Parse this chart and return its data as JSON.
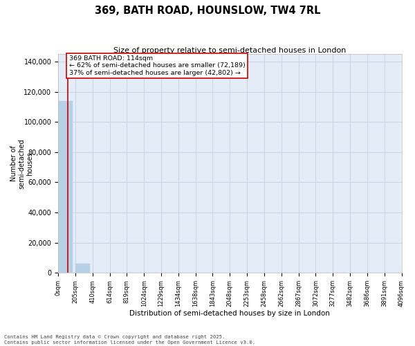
{
  "title": "369, BATH ROAD, HOUNSLOW, TW4 7RL",
  "subtitle": "Size of property relative to semi-detached houses in London",
  "xlabel": "Distribution of semi-detached houses by size in London",
  "ylabel": "Number of\nsemi-detached\nhouses",
  "property_size": 114,
  "annotation_text": "369 BATH ROAD: 114sqm\n← 62% of semi-detached houses are smaller (72,189)\n37% of semi-detached houses are larger (42,802) →",
  "bin_edges": [
    0,
    205,
    410,
    614,
    819,
    1024,
    1229,
    1434,
    1638,
    1843,
    2048,
    2253,
    2458,
    2662,
    2867,
    3072,
    3277,
    3482,
    3686,
    3891,
    4096
  ],
  "bin_labels": [
    "0sqm",
    "205sqm",
    "410sqm",
    "614sqm",
    "819sqm",
    "1024sqm",
    "1229sqm",
    "1434sqm",
    "1638sqm",
    "1843sqm",
    "2048sqm",
    "2253sqm",
    "2458sqm",
    "2662sqm",
    "2867sqm",
    "3072sqm",
    "3277sqm",
    "3482sqm",
    "3686sqm",
    "3891sqm",
    "4096sqm"
  ],
  "bar_heights": [
    114000,
    6200,
    300,
    80,
    20,
    8,
    4,
    2,
    1,
    1,
    0,
    0,
    0,
    0,
    0,
    0,
    0,
    0,
    0,
    0
  ],
  "bar_color": "#b8cfe8",
  "red_line_color": "#cc0000",
  "grid_color": "#c8d4e8",
  "bg_color": "#e4ecf7",
  "annotation_box_color": "#ffffff",
  "annotation_box_edge": "#cc0000",
  "ylim": [
    0,
    145000
  ],
  "yticks": [
    0,
    20000,
    40000,
    60000,
    80000,
    100000,
    120000,
    140000
  ],
  "footer": "Contains HM Land Registry data © Crown copyright and database right 2025.\nContains public sector information licensed under the Open Government Licence v3.0.",
  "figsize": [
    6.0,
    5.0
  ],
  "dpi": 100
}
